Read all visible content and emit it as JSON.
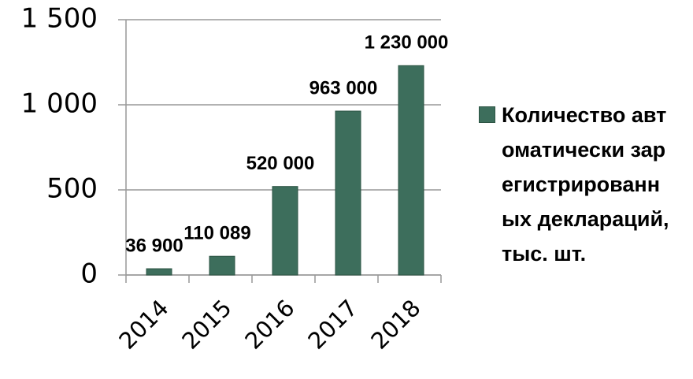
{
  "chart_data": {
    "type": "bar",
    "categories": [
      "2014",
      "2015",
      "2016",
      "2017",
      "2018"
    ],
    "series": [
      {
        "name": "Количество автоматически зарегистрированных деклараций, тыс. шт.",
        "color": "#3d6e5c",
        "values": [
          36.9,
          110.089,
          520,
          963,
          1230
        ],
        "value_labels": [
          "36 900",
          "110 089",
          "520 000",
          "963 000",
          "1 230 000"
        ]
      }
    ],
    "ylim": [
      0,
      1500
    ],
    "yticks": [
      0,
      500,
      {
        "value": 1000,
        "label": "1 000"
      },
      {
        "value": 1500,
        "label": "1 500"
      }
    ],
    "grid": true,
    "legend": "right"
  }
}
